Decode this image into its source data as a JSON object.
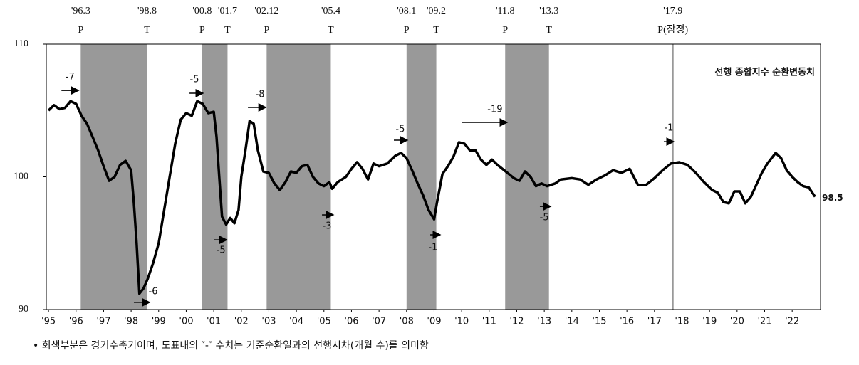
{
  "chart_data": {
    "type": "line",
    "legend": "top-right",
    "xlim": [
      1994.92,
      2023.03
    ],
    "ylim": [
      90,
      110
    ],
    "yticks": [
      90,
      100,
      110
    ],
    "xticks": [
      {
        "value": 1995,
        "label": "'95"
      },
      {
        "value": 1996,
        "label": "'96"
      },
      {
        "value": 1997,
        "label": "'97"
      },
      {
        "value": 1998,
        "label": "'98"
      },
      {
        "value": 1999,
        "label": "'99"
      },
      {
        "value": 2000,
        "label": "'00"
      },
      {
        "value": 2001,
        "label": "'01"
      },
      {
        "value": 2002,
        "label": "'02"
      },
      {
        "value": 2003,
        "label": "'03"
      },
      {
        "value": 2004,
        "label": "'04"
      },
      {
        "value": 2005,
        "label": "'05"
      },
      {
        "value": 2006,
        "label": "'06"
      },
      {
        "value": 2007,
        "label": "'07"
      },
      {
        "value": 2008,
        "label": "'08"
      },
      {
        "value": 2009,
        "label": "'09"
      },
      {
        "value": 2010,
        "label": "'10"
      },
      {
        "value": 2011,
        "label": "'11"
      },
      {
        "value": 2012,
        "label": "'12"
      },
      {
        "value": 2013,
        "label": "'13"
      },
      {
        "value": 2014,
        "label": "'14"
      },
      {
        "value": 2015,
        "label": "'15"
      },
      {
        "value": 2016,
        "label": "'16"
      },
      {
        "value": 2017,
        "label": "'17"
      },
      {
        "value": 2018,
        "label": "'18"
      },
      {
        "value": 2019,
        "label": "'19"
      },
      {
        "value": 2020,
        "label": "'20"
      },
      {
        "value": 2021,
        "label": "'21"
      },
      {
        "value": 2022,
        "label": "'22"
      }
    ],
    "recession_color": "#999999",
    "recessions": [
      {
        "start": 1996.17,
        "end": 1998.58
      },
      {
        "start": 2000.58,
        "end": 2001.5
      },
      {
        "start": 2002.92,
        "end": 2005.25
      },
      {
        "start": 2008.0,
        "end": 2009.08
      },
      {
        "start": 2011.58,
        "end": 2013.17
      }
    ],
    "provisional_line": 2017.67,
    "turning_points": [
      {
        "x": 1996.17,
        "date": "'96.3",
        "type": "P"
      },
      {
        "x": 1998.58,
        "date": "'98.8",
        "type": "T"
      },
      {
        "x": 2000.58,
        "date": "'00.8",
        "type": "P"
      },
      {
        "x": 2001.5,
        "date": "'01.7",
        "type": "T"
      },
      {
        "x": 2002.92,
        "date": "'02.12",
        "type": "P"
      },
      {
        "x": 2005.25,
        "date": "'05.4",
        "type": "T"
      },
      {
        "x": 2008.0,
        "date": "'08.1",
        "type": "P"
      },
      {
        "x": 2009.08,
        "date": "'09.2",
        "type": "T"
      },
      {
        "x": 2011.58,
        "date": "'11.8",
        "type": "P"
      },
      {
        "x": 2013.17,
        "date": "'13.3",
        "type": "T"
      },
      {
        "x": 2017.67,
        "date": "'17.9",
        "type": "P(잠정)"
      }
    ],
    "annotations": [
      {
        "text": "-7",
        "x1": 1995.47,
        "x2": 1996.09,
        "y": 106.51,
        "tx": 1995.78,
        "ty": 107.5
      },
      {
        "text": "-6",
        "x1": 1998.1,
        "x2": 1998.67,
        "y": 90.54,
        "tx": 1998.8,
        "ty": 91.34
      },
      {
        "text": "-5",
        "x1": 2000.12,
        "x2": 2000.61,
        "y": 106.3,
        "tx": 2000.3,
        "ty": 107.32
      },
      {
        "text": "-5",
        "x1": 2001.0,
        "x2": 2001.47,
        "y": 95.25,
        "tx": 2001.26,
        "ty": 94.45
      },
      {
        "text": "-8",
        "x1": 2002.24,
        "x2": 2002.89,
        "y": 105.23,
        "tx": 2002.68,
        "ty": 106.19
      },
      {
        "text": "-3",
        "x1": 2004.93,
        "x2": 2005.34,
        "y": 97.13,
        "tx": 2005.11,
        "ty": 96.27
      },
      {
        "text": "-5",
        "x1": 2007.54,
        "x2": 2008.03,
        "y": 102.76,
        "tx": 2007.77,
        "ty": 103.57
      },
      {
        "text": "-1",
        "x1": 2008.86,
        "x2": 2009.22,
        "y": 95.63,
        "tx": 2008.96,
        "ty": 94.66
      },
      {
        "text": "-19",
        "x1": 2010.0,
        "x2": 2011.65,
        "y": 104.1,
        "tx": 2011.21,
        "ty": 105.07
      },
      {
        "text": "-5",
        "x1": 2012.84,
        "x2": 2013.23,
        "y": 97.77,
        "tx": 2013.0,
        "ty": 96.92
      },
      {
        "text": "-1",
        "x1": 2017.34,
        "x2": 2017.7,
        "y": 102.65,
        "tx": 2017.52,
        "ty": 103.67
      }
    ],
    "series": [
      {
        "name": "선행 종합지수 순환변동치",
        "color": "#000000",
        "x": [
          1995.0,
          1995.2,
          1995.4,
          1995.6,
          1995.8,
          1996.0,
          1996.2,
          1996.4,
          1996.6,
          1996.8,
          1997.0,
          1997.2,
          1997.4,
          1997.6,
          1997.8,
          1998.0,
          1998.1,
          1998.2,
          1998.3,
          1998.45,
          1998.6,
          1998.8,
          1999.0,
          1999.2,
          1999.4,
          1999.6,
          1999.8,
          2000.0,
          2000.2,
          2000.4,
          2000.6,
          2000.8,
          2001.0,
          2001.1,
          2001.2,
          2001.3,
          2001.45,
          2001.6,
          2001.75,
          2001.9,
          2002.0,
          2002.15,
          2002.3,
          2002.45,
          2002.6,
          2002.8,
          2003.0,
          2003.2,
          2003.4,
          2003.6,
          2003.8,
          2004.0,
          2004.2,
          2004.4,
          2004.6,
          2004.8,
          2005.0,
          2005.2,
          2005.3,
          2005.5,
          2005.8,
          2006.0,
          2006.2,
          2006.4,
          2006.6,
          2006.8,
          2007.0,
          2007.3,
          2007.6,
          2007.8,
          2008.0,
          2008.2,
          2008.4,
          2008.6,
          2008.8,
          2009.0,
          2009.1,
          2009.3,
          2009.5,
          2009.7,
          2009.9,
          2010.1,
          2010.3,
          2010.5,
          2010.7,
          2010.9,
          2011.1,
          2011.3,
          2011.6,
          2011.9,
          2012.1,
          2012.3,
          2012.5,
          2012.7,
          2012.9,
          2013.1,
          2013.4,
          2013.6,
          2014.0,
          2014.3,
          2014.6,
          2014.9,
          2015.2,
          2015.5,
          2015.8,
          2016.1,
          2016.4,
          2016.7,
          2017.0,
          2017.3,
          2017.6,
          2017.9,
          2018.2,
          2018.5,
          2018.8,
          2019.1,
          2019.3,
          2019.5,
          2019.7,
          2019.9,
          2020.1,
          2020.3,
          2020.5,
          2020.7,
          2020.9,
          2021.1,
          2021.4,
          2021.6,
          2021.8,
          2022.0,
          2022.2,
          2022.4,
          2022.6,
          2022.83
        ],
        "values": [
          105.0,
          105.4,
          105.1,
          105.2,
          105.7,
          105.5,
          104.6,
          104.0,
          103.0,
          102.0,
          100.8,
          99.7,
          100.0,
          100.9,
          101.2,
          100.5,
          98.0,
          95.0,
          91.2,
          91.6,
          92.3,
          93.5,
          95.0,
          97.5,
          100.0,
          102.5,
          104.3,
          104.8,
          104.6,
          105.7,
          105.5,
          104.8,
          104.9,
          103.0,
          100.0,
          97.0,
          96.4,
          96.9,
          96.5,
          97.5,
          100.0,
          102.0,
          104.2,
          104.0,
          102.0,
          100.4,
          100.3,
          99.5,
          99.0,
          99.6,
          100.4,
          100.3,
          100.8,
          100.9,
          100.0,
          99.5,
          99.3,
          99.6,
          99.1,
          99.6,
          100.0,
          100.6,
          101.1,
          100.6,
          99.8,
          101.0,
          100.8,
          101.0,
          101.6,
          101.8,
          101.4,
          100.5,
          99.5,
          98.6,
          97.5,
          96.8,
          98.0,
          100.2,
          100.8,
          101.5,
          102.6,
          102.5,
          102.0,
          102.0,
          101.3,
          100.9,
          101.3,
          100.9,
          100.4,
          99.9,
          99.7,
          100.4,
          100.0,
          99.3,
          99.5,
          99.3,
          99.5,
          99.8,
          99.9,
          99.8,
          99.4,
          99.8,
          100.1,
          100.5,
          100.3,
          100.6,
          99.4,
          99.4,
          99.9,
          100.5,
          101.0,
          101.1,
          100.9,
          100.3,
          99.6,
          99.0,
          98.8,
          98.1,
          98.0,
          98.9,
          98.9,
          98.0,
          98.5,
          99.4,
          100.3,
          101.0,
          101.8,
          101.4,
          100.5,
          100.0,
          99.6,
          99.3,
          99.2,
          98.5
        ]
      }
    ],
    "footnote": "• 회색부분은 경기수축기이며, 도표내의 ″-″ 수치는 기준순환일과의 선행시차(개월 수)를 의미함"
  }
}
